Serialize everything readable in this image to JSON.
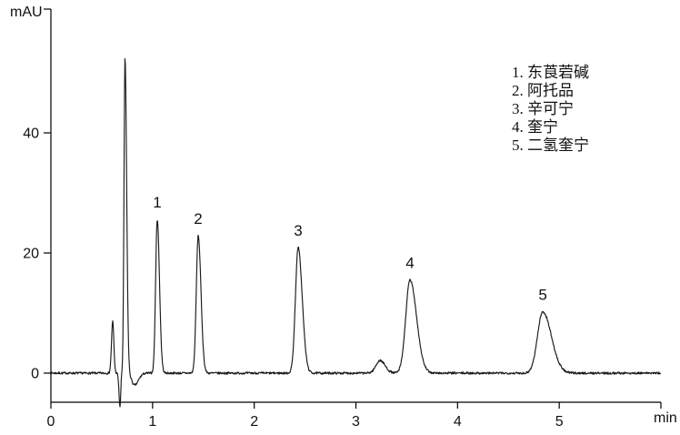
{
  "chart_data": {
    "type": "line",
    "title": "",
    "ylabel": "mAU",
    "xlabel": "min",
    "xlim": [
      0,
      6
    ],
    "ylim": [
      -7,
      61
    ],
    "x_ticks": [
      0,
      1,
      2,
      3,
      4,
      5
    ],
    "y_ticks": [
      0,
      20,
      40
    ],
    "baseline_mAU": 0,
    "noise_mAU": 0.18,
    "trace_color": "#1a1a1a",
    "axis_color": "#000000",
    "text_color": "#111111",
    "peaks": [
      {
        "label": "",
        "time_min": 0.608,
        "height_mAU": 8.6,
        "sigma_left_min": 0.012,
        "sigma_right_min": 0.011
      },
      {
        "label": "",
        "time_min": 0.68,
        "height_mAU": -5.6,
        "sigma_left_min": 0.01,
        "sigma_right_min": 0.007
      },
      {
        "label": "",
        "time_min": 0.729,
        "height_mAU": 52.5,
        "sigma_left_min": 0.01,
        "sigma_right_min": 0.016
      },
      {
        "label": "",
        "time_min": 0.823,
        "height_mAU": -2.0,
        "sigma_left_min": 0.028,
        "sigma_right_min": 0.038
      },
      {
        "label": "1",
        "time_min": 1.046,
        "height_mAU": 25.6,
        "sigma_left_min": 0.016,
        "sigma_right_min": 0.022
      },
      {
        "label": "2",
        "time_min": 1.449,
        "height_mAU": 22.9,
        "sigma_left_min": 0.019,
        "sigma_right_min": 0.027
      },
      {
        "label": "3",
        "time_min": 2.432,
        "height_mAU": 20.9,
        "sigma_left_min": 0.027,
        "sigma_right_min": 0.04
      },
      {
        "label": "",
        "time_min": 3.237,
        "height_mAU": 2.1,
        "sigma_left_min": 0.04,
        "sigma_right_min": 0.05
      },
      {
        "label": "4",
        "time_min": 3.532,
        "height_mAU": 15.5,
        "sigma_left_min": 0.042,
        "sigma_right_min": 0.065
      },
      {
        "label": "5",
        "time_min": 4.838,
        "height_mAU": 10.2,
        "sigma_left_min": 0.052,
        "sigma_right_min": 0.085
      }
    ],
    "legend": {
      "items": [
        "1. 东莨菪碱",
        "2. 阿托品",
        "3. 辛可宁",
        "4. 奎宁",
        "5. 二氢奎宁"
      ]
    }
  }
}
